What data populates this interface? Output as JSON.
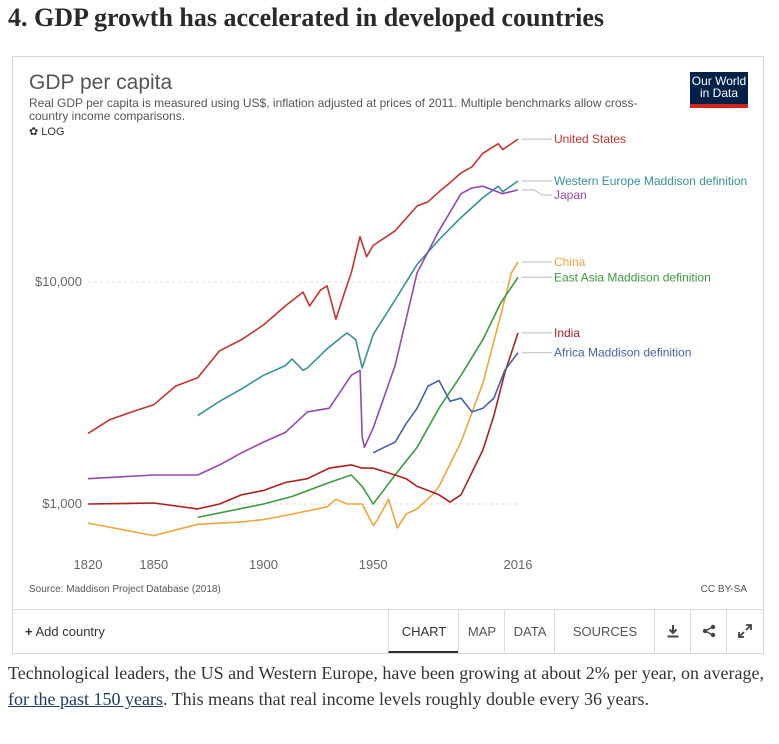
{
  "heading": "4. GDP growth has accelerated in developed countries",
  "card": {
    "title": "GDP per capita",
    "subtitle": "Real GDP per capita is measured using US$, inflation adjusted at prices of 2011. Multiple benchmarks allow cross-country income comparisons.",
    "log_toggle": "LOG",
    "logo_line1": "Our World",
    "logo_line2": "in Data",
    "source": "Source: Maddison Project Database (2018)",
    "license": "CC BY-SA"
  },
  "controls": {
    "add_country": "Add country",
    "tabs": [
      "CHART",
      "MAP",
      "DATA",
      "SOURCES"
    ]
  },
  "paragraph": {
    "before": "Technological leaders, the US and Western Europe, have been growing at about 2% per year, on average, ",
    "link": "for the past 150 years",
    "after": ". This means that real income levels roughly double every 36 years."
  },
  "chart_data": {
    "type": "line",
    "title": "GDP per capita",
    "yscale": "log",
    "ylim": [
      520,
      45000
    ],
    "xlim": [
      1820,
      2016
    ],
    "xticks": [
      "1820",
      "1850",
      "1900",
      "1950",
      "2016"
    ],
    "yticks": [
      {
        "value": 1000,
        "label": "$1,000"
      },
      {
        "value": 10000,
        "label": "$10,000"
      }
    ],
    "legend": "right",
    "series": [
      {
        "name": "United States",
        "color": "#c8322e",
        "points": [
          [
            1820,
            2080
          ],
          [
            1830,
            2400
          ],
          [
            1840,
            2600
          ],
          [
            1850,
            2800
          ],
          [
            1860,
            3400
          ],
          [
            1870,
            3700
          ],
          [
            1880,
            4900
          ],
          [
            1890,
            5500
          ],
          [
            1900,
            6400
          ],
          [
            1910,
            7800
          ],
          [
            1918,
            9000
          ],
          [
            1921,
            7800
          ],
          [
            1926,
            9200
          ],
          [
            1929,
            9600
          ],
          [
            1933,
            6800
          ],
          [
            1937,
            9000
          ],
          [
            1940,
            11000
          ],
          [
            1944,
            16000
          ],
          [
            1947,
            13000
          ],
          [
            1950,
            14600
          ],
          [
            1960,
            17000
          ],
          [
            1970,
            22000
          ],
          [
            1975,
            23000
          ],
          [
            1980,
            25500
          ],
          [
            1985,
            28000
          ],
          [
            1990,
            31000
          ],
          [
            1995,
            33000
          ],
          [
            2000,
            38000
          ],
          [
            2007,
            42000
          ],
          [
            2009,
            39500
          ],
          [
            2016,
            44000
          ]
        ]
      },
      {
        "name": "Western Europe Maddison definition",
        "color": "#38909a",
        "points": [
          [
            1870,
            2500
          ],
          [
            1880,
            2900
          ],
          [
            1890,
            3300
          ],
          [
            1900,
            3800
          ],
          [
            1910,
            4200
          ],
          [
            1913,
            4500
          ],
          [
            1918,
            4000
          ],
          [
            1920,
            4100
          ],
          [
            1929,
            5000
          ],
          [
            1938,
            5900
          ],
          [
            1942,
            5500
          ],
          [
            1945,
            4100
          ],
          [
            1950,
            5800
          ],
          [
            1960,
            8300
          ],
          [
            1970,
            12000
          ],
          [
            1980,
            15500
          ],
          [
            1990,
            19500
          ],
          [
            2000,
            24000
          ],
          [
            2007,
            27000
          ],
          [
            2009,
            25500
          ],
          [
            2016,
            28500
          ]
        ]
      },
      {
        "name": "Japan",
        "color": "#9549b0",
        "points": [
          [
            1820,
            1300
          ],
          [
            1850,
            1350
          ],
          [
            1870,
            1350
          ],
          [
            1880,
            1500
          ],
          [
            1890,
            1700
          ],
          [
            1900,
            1900
          ],
          [
            1910,
            2100
          ],
          [
            1920,
            2600
          ],
          [
            1930,
            2700
          ],
          [
            1940,
            3800
          ],
          [
            1944,
            4000
          ],
          [
            1945,
            2000
          ],
          [
            1946,
            1800
          ],
          [
            1950,
            2200
          ],
          [
            1960,
            4200
          ],
          [
            1970,
            11000
          ],
          [
            1980,
            17000
          ],
          [
            1990,
            25000
          ],
          [
            1995,
            26500
          ],
          [
            2000,
            27000
          ],
          [
            2009,
            25000
          ],
          [
            2016,
            26000
          ]
        ]
      },
      {
        "name": "China",
        "color": "#eea63a",
        "points": [
          [
            1820,
            820
          ],
          [
            1850,
            720
          ],
          [
            1870,
            810
          ],
          [
            1890,
            830
          ],
          [
            1900,
            850
          ],
          [
            1913,
            900
          ],
          [
            1929,
            970
          ],
          [
            1933,
            1050
          ],
          [
            1938,
            1000
          ],
          [
            1945,
            1000
          ],
          [
            1950,
            800
          ],
          [
            1952,
            850
          ],
          [
            1957,
            1050
          ],
          [
            1961,
            780
          ],
          [
            1965,
            900
          ],
          [
            1970,
            950
          ],
          [
            1977,
            1100
          ],
          [
            1980,
            1200
          ],
          [
            1990,
            1900
          ],
          [
            2000,
            3500
          ],
          [
            2008,
            7000
          ],
          [
            2013,
            11000
          ],
          [
            2016,
            12300
          ]
        ]
      },
      {
        "name": "East Asia Maddison definition",
        "color": "#3a9c3e",
        "points": [
          [
            1870,
            870
          ],
          [
            1900,
            1000
          ],
          [
            1913,
            1080
          ],
          [
            1930,
            1250
          ],
          [
            1940,
            1350
          ],
          [
            1945,
            1200
          ],
          [
            1950,
            1000
          ],
          [
            1960,
            1350
          ],
          [
            1970,
            1800
          ],
          [
            1980,
            2700
          ],
          [
            1990,
            3800
          ],
          [
            2000,
            5500
          ],
          [
            2008,
            8000
          ],
          [
            2016,
            10500
          ]
        ]
      },
      {
        "name": "India",
        "color": "#ad2022",
        "points": [
          [
            1820,
            1000
          ],
          [
            1850,
            1010
          ],
          [
            1870,
            950
          ],
          [
            1880,
            1000
          ],
          [
            1890,
            1100
          ],
          [
            1900,
            1150
          ],
          [
            1910,
            1250
          ],
          [
            1920,
            1300
          ],
          [
            1930,
            1450
          ],
          [
            1940,
            1500
          ],
          [
            1945,
            1450
          ],
          [
            1950,
            1450
          ],
          [
            1960,
            1350
          ],
          [
            1965,
            1300
          ],
          [
            1970,
            1200
          ],
          [
            1975,
            1150
          ],
          [
            1980,
            1100
          ],
          [
            1985,
            1020
          ],
          [
            1990,
            1100
          ],
          [
            2000,
            1750
          ],
          [
            2005,
            2500
          ],
          [
            2010,
            3900
          ],
          [
            2016,
            5900
          ]
        ]
      },
      {
        "name": "Africa Maddison definition",
        "color": "#4463a7",
        "points": [
          [
            1950,
            1700
          ],
          [
            1955,
            1800
          ],
          [
            1960,
            1900
          ],
          [
            1965,
            2300
          ],
          [
            1970,
            2700
          ],
          [
            1975,
            3400
          ],
          [
            1980,
            3600
          ],
          [
            1985,
            2900
          ],
          [
            1990,
            3000
          ],
          [
            1995,
            2600
          ],
          [
            2000,
            2700
          ],
          [
            2005,
            3000
          ],
          [
            2010,
            4000
          ],
          [
            2016,
            4800
          ]
        ]
      }
    ],
    "label_positions": [
      "United States",
      "Western Europe Maddison definition",
      "Japan",
      "China",
      "East Asia Maddison definition",
      "India",
      "Africa Maddison definition"
    ]
  }
}
